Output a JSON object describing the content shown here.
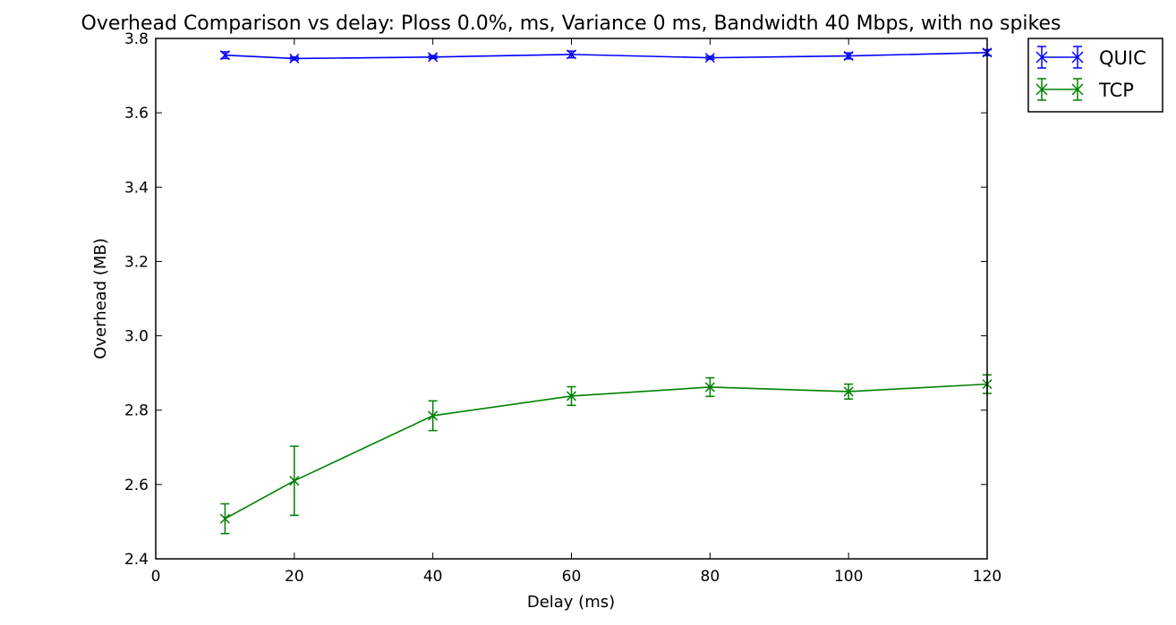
{
  "chart_data": {
    "type": "line",
    "title": "Overhead Comparison vs delay: Ploss 0.0%, ms, Variance 0 ms, Bandwidth 40 Mbps, with no spikes",
    "xlabel": "Delay (ms)",
    "ylabel": "Overhead (MB)",
    "xlim": [
      0,
      120
    ],
    "ylim": [
      2.4,
      3.8
    ],
    "xticks": [
      "0",
      "20",
      "40",
      "60",
      "80",
      "100",
      "120"
    ],
    "yticks": [
      "2.4",
      "2.6",
      "2.8",
      "3.0",
      "3.2",
      "3.4",
      "3.6",
      "3.8"
    ],
    "grid": false,
    "legend_position": "outside-top-right",
    "x": [
      10,
      20,
      40,
      60,
      80,
      100,
      120
    ],
    "series": [
      {
        "name": "QUIC",
        "color": "#0000ff",
        "marker": "x",
        "values": [
          3.755,
          3.746,
          3.75,
          3.757,
          3.748,
          3.753,
          3.762
        ],
        "errors": [
          0.009,
          0.004,
          0.004,
          0.009,
          0.004,
          0.008,
          0.008
        ]
      },
      {
        "name": "TCP",
        "color": "#008000",
        "marker": "x",
        "values": [
          2.508,
          2.61,
          2.785,
          2.838,
          2.862,
          2.85,
          2.87
        ],
        "errors": [
          0.04,
          0.093,
          0.04,
          0.025,
          0.025,
          0.02,
          0.025
        ]
      }
    ]
  }
}
